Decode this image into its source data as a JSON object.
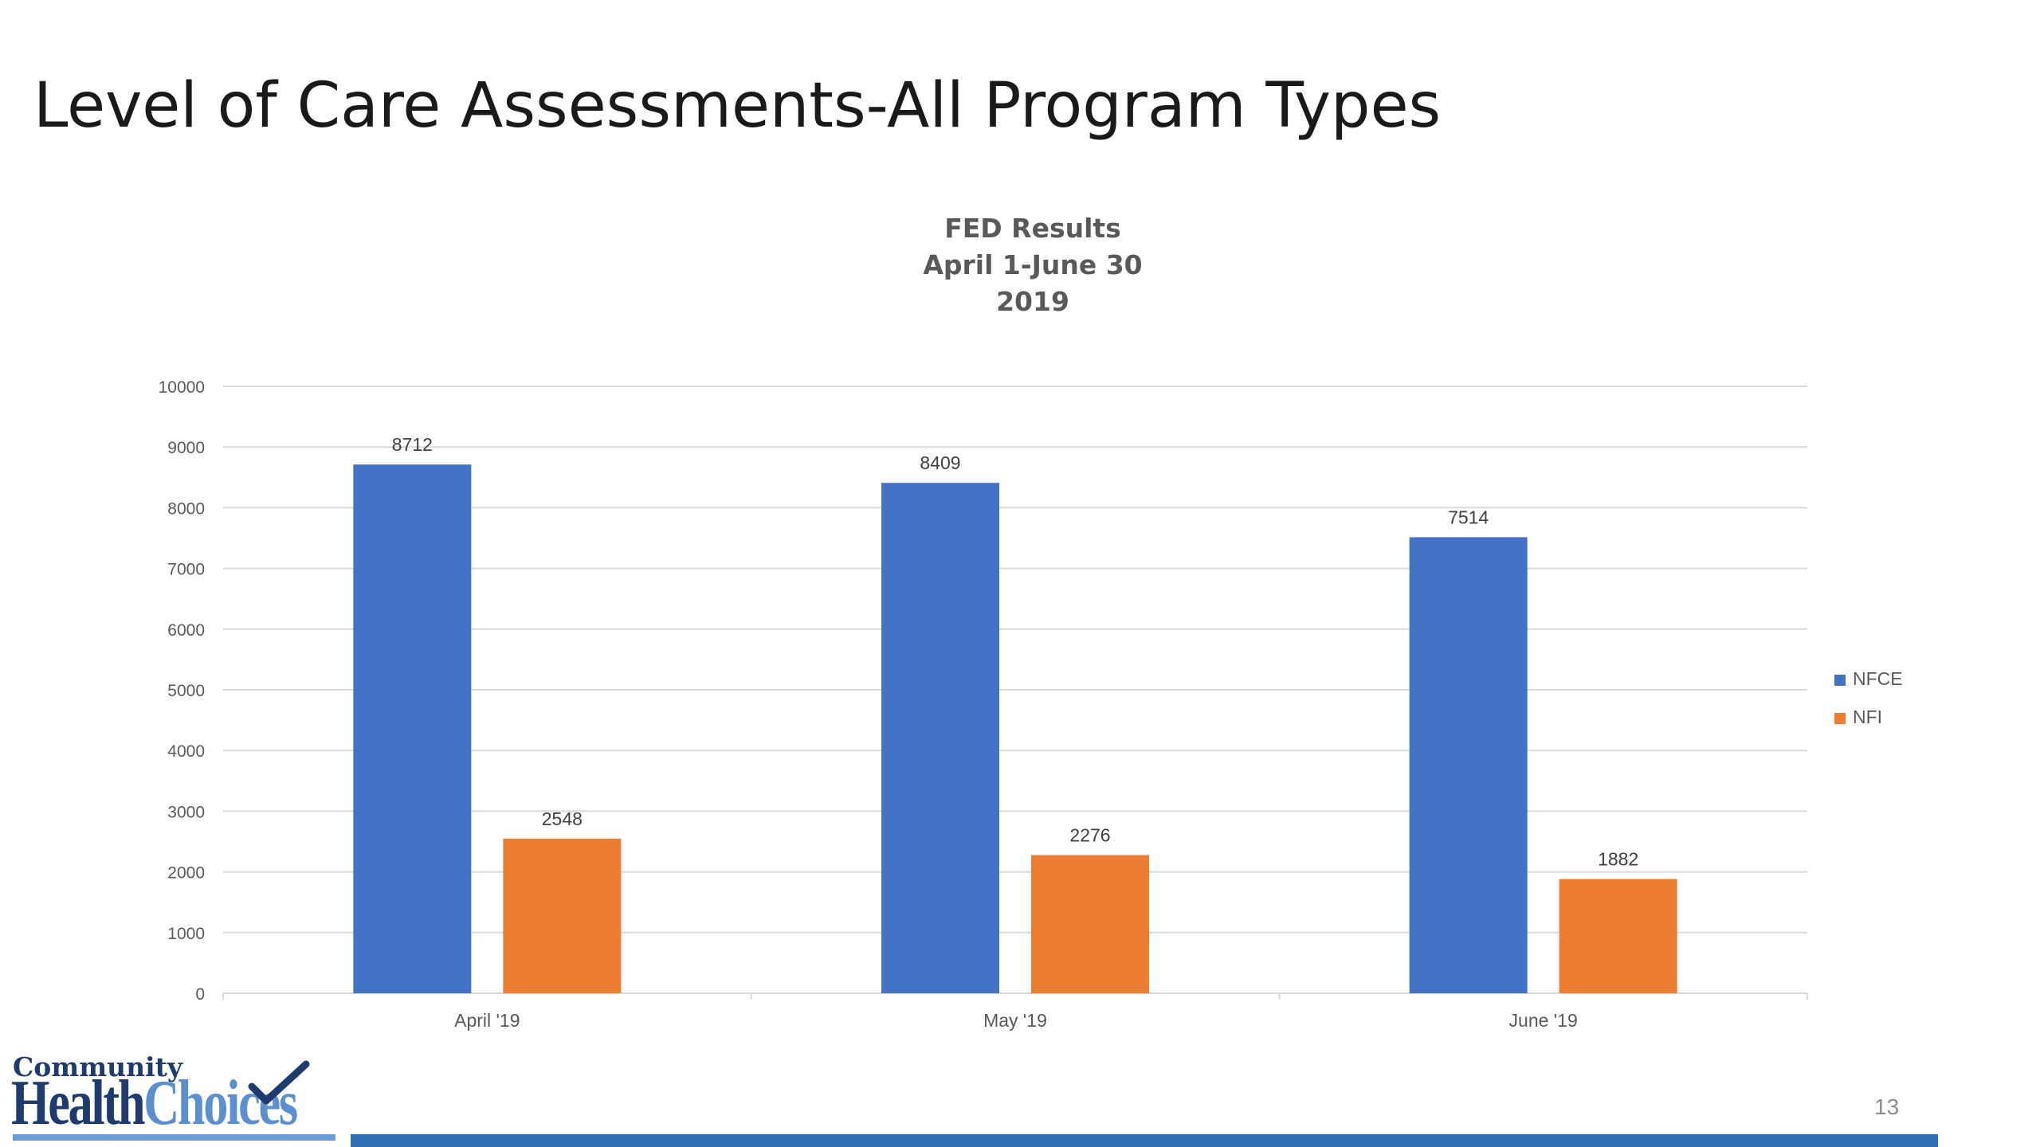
{
  "slide": {
    "title": "Level of Care Assessments-All Program Types",
    "page_number": "13"
  },
  "logo": {
    "line1": "Community",
    "line2_part1": "Health",
    "line2_part2": "Choices"
  },
  "colors": {
    "NFCE": "#4472c4",
    "NFI": "#ed7d31",
    "footer_bar": "#2f6eb5",
    "gridline": "#d9d9d9",
    "axis_text": "#595959"
  },
  "chart_data": {
    "type": "bar",
    "title_lines": [
      "FED Results",
      "April 1-June 30",
      "2019"
    ],
    "categories": [
      "April '19",
      "May '19",
      "June '19"
    ],
    "series": [
      {
        "name": "NFCE",
        "values": [
          8712,
          8409,
          7514
        ]
      },
      {
        "name": "NFI",
        "values": [
          2548,
          2276,
          1882
        ]
      }
    ],
    "ylim": [
      0,
      10000
    ],
    "yticks": [
      0,
      1000,
      2000,
      3000,
      4000,
      5000,
      6000,
      7000,
      8000,
      9000,
      10000
    ],
    "data_labels": true,
    "grid": true,
    "legend_position": "right"
  }
}
